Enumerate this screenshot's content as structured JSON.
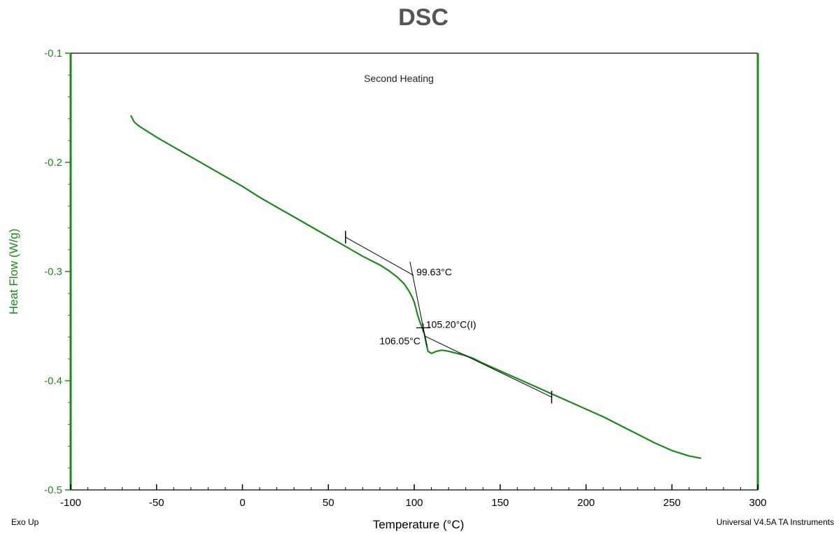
{
  "title": "DSC",
  "colors": {
    "curve": "#1a8a1a",
    "axis_left_right": "#1a8a1a",
    "title": "#555555",
    "construction": "#000000"
  },
  "chart_data": {
    "type": "line",
    "title": "DSC",
    "subtitle": "Second Heating",
    "xlabel": "Temperature (°C)",
    "ylabel": "Heat Flow (W/g)",
    "xlim": [
      -100,
      300
    ],
    "ylim": [
      -0.5,
      -0.1
    ],
    "x_ticks": [
      "-100",
      "-50",
      "0",
      "50",
      "100",
      "150",
      "200",
      "250",
      "300"
    ],
    "y_ticks": [
      "-0.1",
      "-0.2",
      "-0.3",
      "-0.4",
      "-0.5"
    ],
    "grid": false,
    "footer_left": "Exo Up",
    "footer_right": "Universal V4.5A TA Instruments",
    "series": [
      {
        "x": [
          -65,
          -63,
          -60,
          -55,
          -50,
          -40,
          -30,
          -20,
          -10,
          0,
          10,
          20,
          30,
          40,
          50,
          60,
          70,
          80,
          85,
          90,
          94,
          97,
          99,
          100,
          101,
          102,
          103,
          104,
          105,
          106,
          107,
          108,
          110,
          113,
          116,
          120,
          125,
          130,
          135,
          140,
          150,
          160,
          170,
          180,
          190,
          200,
          210,
          220,
          230,
          240,
          250,
          260,
          267
        ],
        "y": [
          -0.157,
          -0.163,
          -0.167,
          -0.172,
          -0.177,
          -0.186,
          -0.195,
          -0.204,
          -0.213,
          -0.222,
          -0.232,
          -0.241,
          -0.25,
          -0.259,
          -0.268,
          -0.277,
          -0.286,
          -0.294,
          -0.299,
          -0.305,
          -0.311,
          -0.318,
          -0.324,
          -0.328,
          -0.334,
          -0.34,
          -0.345,
          -0.349,
          -0.353,
          -0.358,
          -0.366,
          -0.373,
          -0.375,
          -0.373,
          -0.372,
          -0.373,
          -0.375,
          -0.377,
          -0.38,
          -0.384,
          -0.391,
          -0.398,
          -0.405,
          -0.412,
          -0.419,
          -0.426,
          -0.433,
          -0.441,
          -0.449,
          -0.457,
          -0.464,
          -0.469,
          -0.471
        ]
      }
    ],
    "tangents": [
      {
        "x": [
          60,
          99.63
        ],
        "y": [
          -0.2685,
          -0.3035
        ]
      },
      {
        "x": [
          97.5,
          107.5
        ],
        "y": [
          -0.291,
          -0.369
        ]
      },
      {
        "x": [
          106.05,
          180
        ],
        "y": [
          -0.359,
          -0.415
        ]
      }
    ],
    "markers": [
      {
        "x": 60,
        "y": -0.2685
      },
      {
        "x": 180,
        "y": -0.415
      }
    ],
    "inflection": {
      "x": 105.2,
      "y": -0.3515
    },
    "annotations": [
      {
        "text": "99.63°C",
        "x": 99.63,
        "y": -0.3035,
        "anchor": "start"
      },
      {
        "text": "105.20°C(I)",
        "x": 105.2,
        "y": -0.3515,
        "anchor": "start"
      },
      {
        "text": "106.05°C",
        "x": 106.05,
        "y": -0.359,
        "anchor": "end"
      }
    ]
  }
}
